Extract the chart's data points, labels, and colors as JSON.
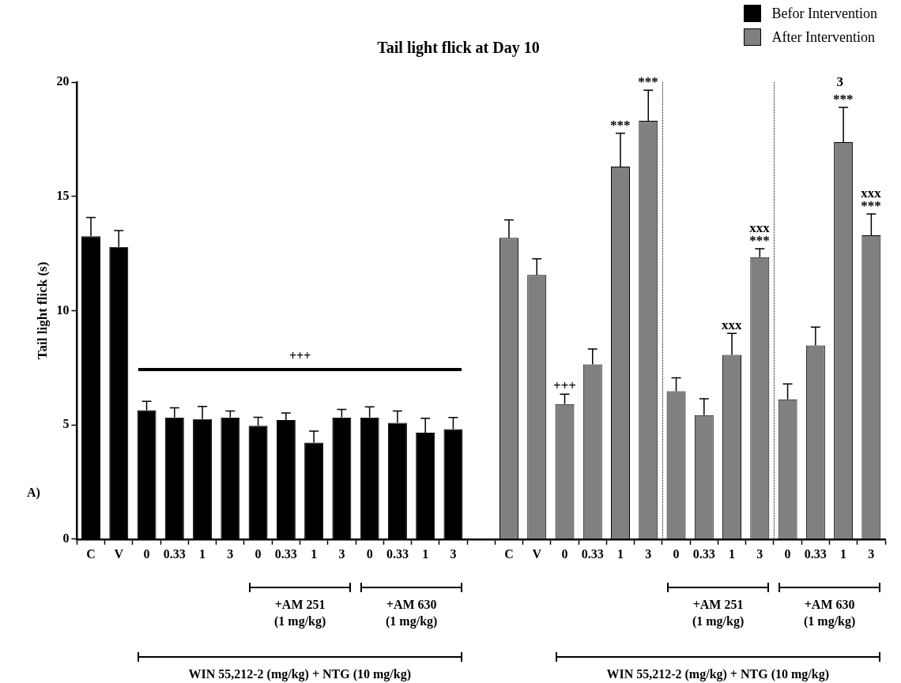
{
  "chart_data": {
    "type": "bar",
    "title": "Tail light flick at Day 10",
    "ylabel": "Tail light flick (s)",
    "categories": [
      "C",
      "V",
      "0",
      "0.33",
      "1",
      "3",
      "0",
      "0.33",
      "1",
      "3",
      "0",
      "0.33",
      "1",
      "3",
      null,
      "C",
      "V",
      "0",
      "0.33",
      "1",
      "3",
      "0",
      "0.33",
      "1",
      "3",
      "0",
      "0.33",
      "1",
      "3"
    ],
    "series": [
      {
        "name": "Befor Intervention",
        "color": "#000000",
        "values": [
          13.25,
          12.79,
          5.64,
          5.32,
          5.25,
          5.32,
          4.96,
          5.21,
          4.23,
          5.32,
          5.32,
          5.09,
          4.66,
          4.81,
          null,
          null,
          null,
          null,
          null,
          null,
          null,
          null,
          null,
          null,
          null,
          null,
          null,
          null,
          null
        ],
        "errors": [
          [
            13.25,
            14.07
          ],
          [
            12.79,
            13.5
          ],
          [
            5.64,
            6.03
          ],
          [
            5.32,
            5.75
          ],
          [
            5.25,
            5.81
          ],
          [
            5.32,
            5.61
          ],
          [
            4.96,
            5.33
          ],
          [
            5.21,
            5.52
          ],
          [
            4.23,
            4.73
          ],
          [
            5.32,
            5.68
          ],
          [
            5.32,
            5.79
          ],
          [
            5.09,
            5.61
          ],
          [
            4.66,
            5.29
          ],
          [
            4.81,
            5.32
          ],
          null,
          null,
          null,
          null,
          null,
          null,
          null,
          null,
          null,
          null,
          null,
          null,
          null,
          null,
          null
        ]
      },
      {
        "name": "After Intervention",
        "color": "#808080",
        "values": [
          null,
          null,
          null,
          null,
          null,
          null,
          null,
          null,
          null,
          null,
          null,
          null,
          null,
          null,
          null,
          13.18,
          11.56,
          5.91,
          7.65,
          16.3,
          18.31,
          6.47,
          5.43,
          8.06,
          12.34,
          6.12,
          8.48,
          17.37,
          13.3
        ],
        "errors": [
          null,
          null,
          null,
          null,
          null,
          null,
          null,
          null,
          null,
          null,
          null,
          null,
          null,
          null,
          null,
          [
            13.18,
            13.97
          ],
          [
            11.56,
            12.27
          ],
          [
            5.91,
            6.34
          ],
          [
            7.65,
            8.32
          ],
          [
            16.3,
            17.76
          ],
          [
            18.31,
            19.65
          ],
          [
            6.47,
            7.06
          ],
          [
            5.43,
            6.14
          ],
          [
            8.06,
            9.0
          ],
          [
            12.34,
            12.71
          ],
          [
            6.12,
            6.79
          ],
          [
            8.48,
            9.28
          ],
          [
            17.37,
            18.89
          ],
          [
            13.3,
            14.23
          ]
        ]
      }
    ],
    "ylim": [
      0,
      20
    ],
    "yticks": [
      0,
      5,
      10,
      15,
      20
    ],
    "grid": false,
    "legend": "top right",
    "annotations": [
      "+++",
      "+AM 251\n(1 mg/kg)",
      "+AM 630\n(1 mg/kg)",
      "+AM 251\n(1 mg/kg)",
      "+AM 630\n(1 mg/kg)",
      "WIN 55,212-2 (mg/kg) + NTG (10 mg/kg)",
      "WIN 55,212-2 (mg/kg) + NTG (10 mg/kg)",
      "A)",
      "3",
      "+++",
      "***",
      "***",
      "xxx",
      "xxx\n***",
      "***",
      "xxx\n***"
    ]
  }
}
